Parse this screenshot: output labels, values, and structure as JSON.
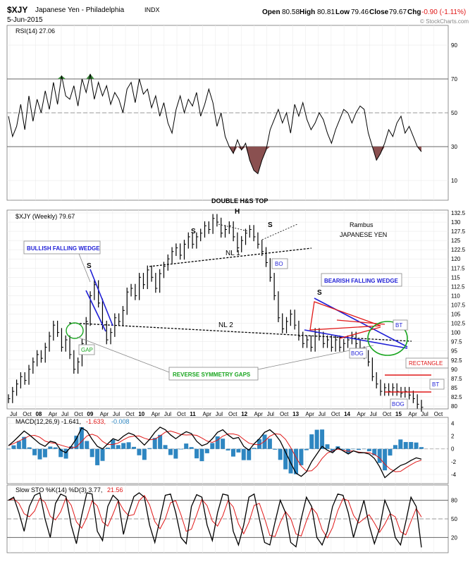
{
  "header": {
    "symbol": "$XJY",
    "name": "Japanese Yen - Philadelphia",
    "exchange": "INDX",
    "date": "5-Jun-2015",
    "open_label": "Open",
    "open": "80.58",
    "high_label": "High",
    "high": "80.81",
    "low_label": "Low",
    "low": "79.46",
    "close_label": "Close",
    "close": "79.67",
    "chg_label": "Chg",
    "chg": "-0.90 (-1.11%)",
    "watermark": "© StockCharts.com"
  },
  "panels": {
    "rsi_label": "RSI(14) 27.06",
    "price_label": "$XJY (Weekly) 79.67",
    "macd_label": "MACD(12,26,9) -1.641,",
    "macd_signal": "-1.633,",
    "macd_hist": "-0.008",
    "sto_label": "Slow STO %K(14) %D(3) 3.77,",
    "sto_d": "21.56"
  },
  "annotations": {
    "double_hs": "DOUBLE H&S TOP",
    "author": "Rambus",
    "title": "JAPANESE YEN",
    "bullish_wedge": "BULLISH FALLING WEDGE",
    "bearish_wedge": "BEARISH FALLING WEDGE",
    "reverse_gaps": "REVERSE SYMMETRY GAPS",
    "rectangle": "RECTANGLE",
    "nl1": "NL 1",
    "nl2": "NL 2",
    "gap": "GAP",
    "bo": "BO",
    "bog1": "BOG",
    "bog2": "BOG",
    "bt1": "BT",
    "bt2": "BT",
    "s1": "S",
    "h": "H",
    "s2": "S",
    "s3": "S",
    "s4": "S"
  },
  "colors": {
    "blue": "#1f1fd6",
    "red": "#e01818",
    "green": "#19a51f",
    "rsi_fill": "#8a5050",
    "macd_hist": "#2e86c1"
  },
  "chart_data": [
    {
      "type": "line",
      "name": "RSI(14)",
      "ylim": [
        0,
        100
      ],
      "yticks": [
        10,
        30,
        50,
        70,
        90
      ],
      "reference_lines": [
        30,
        50,
        70
      ],
      "values": [
        48,
        36,
        42,
        55,
        40,
        60,
        45,
        58,
        50,
        63,
        52,
        68,
        55,
        72,
        60,
        58,
        66,
        54,
        70,
        62,
        73,
        58,
        68,
        60,
        66,
        55,
        62,
        58,
        50,
        64,
        68,
        56,
        70,
        61,
        64,
        53,
        60,
        48,
        56,
        44,
        38,
        52,
        60,
        50,
        58,
        54,
        62,
        48,
        55,
        64,
        56,
        42,
        50,
        36,
        30,
        26,
        34,
        28,
        32,
        22,
        16,
        14,
        22,
        28,
        40,
        46,
        52,
        44,
        50,
        38,
        55,
        48,
        56,
        46,
        40,
        44,
        50,
        46,
        38,
        32,
        40,
        46,
        52,
        50,
        44,
        50,
        54,
        52,
        38,
        30,
        22,
        26,
        32,
        40,
        36,
        44,
        48,
        38,
        42,
        36,
        30,
        27
      ]
    },
    {
      "type": "line",
      "name": "$XJY (Weekly)",
      "ylim": [
        80,
        132.5
      ],
      "yticks": [
        80,
        82.5,
        85,
        87.5,
        90,
        92.5,
        95,
        97.5,
        100,
        102.5,
        105,
        107.5,
        110,
        112.5,
        115,
        117.5,
        120,
        122.5,
        125,
        127.5,
        130,
        132.5
      ],
      "x_tick_labels": [
        "Jul",
        "Oct",
        "08",
        "Apr",
        "Jul",
        "Oct",
        "09",
        "Apr",
        "Jul",
        "Oct",
        "10",
        "Apr",
        "Jul",
        "Oct",
        "11",
        "Apr",
        "Jul",
        "Oct",
        "12",
        "Apr",
        "Jul",
        "Oct",
        "13",
        "Apr",
        "Jul",
        "Oct",
        "14",
        "Apr",
        "Jul",
        "Oct",
        "15",
        "Apr",
        "Jul",
        "Oct"
      ],
      "values": [
        82,
        84,
        86,
        88,
        87,
        90,
        92,
        94,
        93,
        96,
        99,
        102,
        100,
        96,
        98,
        94,
        90,
        92,
        97,
        103,
        110,
        113,
        108,
        102,
        98,
        100,
        104,
        103,
        106,
        111,
        112,
        110,
        115,
        113,
        117,
        115,
        112,
        116,
        118,
        120,
        122,
        123,
        121,
        124,
        126,
        124,
        126,
        127,
        129,
        128,
        131,
        130,
        127,
        128,
        129,
        126,
        123,
        125,
        127,
        128,
        126,
        124,
        122,
        119,
        115,
        110,
        104,
        101,
        103,
        105,
        102,
        99,
        97,
        98,
        96,
        100,
        99,
        97,
        98,
        96,
        98,
        96,
        97,
        98,
        99,
        97,
        95,
        94,
        92,
        88,
        86,
        84,
        85,
        84,
        85,
        84,
        83.5,
        84,
        83,
        82,
        80.5,
        79.67
      ]
    },
    {
      "type": "line",
      "name": "MACD(12,26,9)",
      "ylim": [
        -5,
        4.5
      ],
      "yticks": [
        -4,
        -2,
        0,
        2,
        4
      ],
      "series": [
        {
          "name": "MACD",
          "last": -1.641
        },
        {
          "name": "Signal",
          "last": -1.633
        },
        {
          "name": "Histogram",
          "last": -0.008
        }
      ],
      "values": [
        0.5,
        1.2,
        2,
        2.8,
        2.2,
        1.5,
        0.8,
        0.4,
        1.2,
        1,
        -0.2,
        -0.6,
        0.4,
        1.6,
        3.3,
        2.8,
        1.5,
        0.4,
        0,
        0.8,
        1.6,
        1.3,
        2,
        2.5,
        2.2,
        1.4,
        0.6,
        1.5,
        2.6,
        3.4,
        3,
        2.2,
        1.6,
        2.2,
        2.7,
        2.4,
        1.2,
        0.5,
        0.8,
        1.6,
        2.6,
        3,
        2.2,
        1.6,
        1.8,
        0.4,
        -0.2,
        0.8,
        1.6,
        2.6,
        3,
        2.3,
        1.2,
        -0.5,
        -2.2,
        -3.8,
        -4.3,
        -3.6,
        -2,
        -0.8,
        0.4,
        -0.2,
        -0.6,
        0.2,
        -0.3,
        -0.8,
        -0.3,
        -0.6,
        -0.6,
        -0.8,
        -1.5,
        -2.8,
        -4.5,
        -3.8,
        -3.2,
        -2.6,
        -2.3,
        -1.8,
        -1.4,
        -1.6
      ]
    },
    {
      "type": "line",
      "name": "Slow STO %K(14) %D(3)",
      "ylim": [
        0,
        100
      ],
      "yticks": [
        20,
        50,
        80
      ],
      "series": [
        {
          "name": "%K",
          "last": 3.77
        },
        {
          "name": "%D",
          "last": 21.56
        }
      ],
      "values": [
        80,
        85,
        60,
        30,
        70,
        88,
        92,
        50,
        20,
        75,
        90,
        86,
        40,
        10,
        55,
        92,
        90,
        30,
        15,
        70,
        88,
        80,
        25,
        60,
        86,
        92,
        85,
        40,
        12,
        50,
        88,
        90,
        60,
        20,
        10,
        70,
        89,
        85,
        40,
        15,
        60,
        90,
        88,
        30,
        8,
        40,
        85,
        90,
        50,
        12,
        8,
        45,
        80,
        60,
        12,
        5,
        50,
        85,
        70,
        20,
        8,
        30,
        70,
        90,
        88,
        60,
        20,
        50,
        80,
        40,
        10,
        35,
        80,
        60,
        20,
        8,
        45,
        85,
        70,
        4
      ]
    }
  ]
}
